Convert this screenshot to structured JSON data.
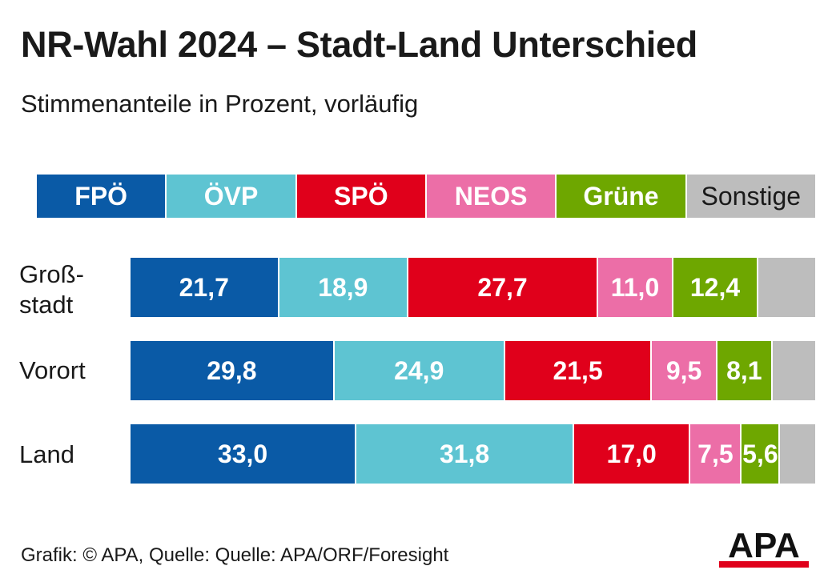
{
  "title": "NR-Wahl 2024 – Stadt-Land Unterschied",
  "subtitle": "Stimmenanteile in Prozent, vorläufig",
  "footer": "Grafik: © APA, Quelle: Quelle: APA/ORF/Foresight",
  "logo_text": "APA",
  "colors": {
    "FPÖ": "#0a5aa6",
    "ÖVP": "#5ec4d2",
    "SPÖ": "#e0001b",
    "NEOS": "#ec6ea7",
    "Grüne": "#6ea700",
    "Sonstige": "#bdbdbd"
  },
  "chart_data": {
    "type": "bar",
    "orientation": "horizontal",
    "stacked": true,
    "title": "NR-Wahl 2024 – Stadt-Land Unterschied",
    "subtitle": "Stimmenanteile in Prozent, vorläufig",
    "legend_position": "top",
    "categories": [
      "Groß-\nstadt",
      "Vorort",
      "Land"
    ],
    "series": [
      {
        "name": "FPÖ",
        "values": [
          21.7,
          29.8,
          33.0
        ],
        "labels": [
          "21,7",
          "29,8",
          "33,0"
        ]
      },
      {
        "name": "ÖVP",
        "values": [
          18.9,
          24.9,
          31.8
        ],
        "labels": [
          "18,9",
          "24,9",
          "31,8"
        ]
      },
      {
        "name": "SPÖ",
        "values": [
          27.7,
          21.5,
          17.0
        ],
        "labels": [
          "27,7",
          "21,5",
          "17,0"
        ]
      },
      {
        "name": "NEOS",
        "values": [
          11.0,
          9.5,
          7.5
        ],
        "labels": [
          "11,0",
          "9,5",
          "7,5"
        ]
      },
      {
        "name": "Grüne",
        "values": [
          12.4,
          8.1,
          5.6
        ],
        "labels": [
          "12,4",
          "8,1",
          "5,6"
        ]
      },
      {
        "name": "Sonstige",
        "values": [
          8.3,
          6.2,
          5.1
        ],
        "labels": [
          "",
          "",
          ""
        ]
      }
    ],
    "xlim": [
      0,
      100
    ]
  }
}
